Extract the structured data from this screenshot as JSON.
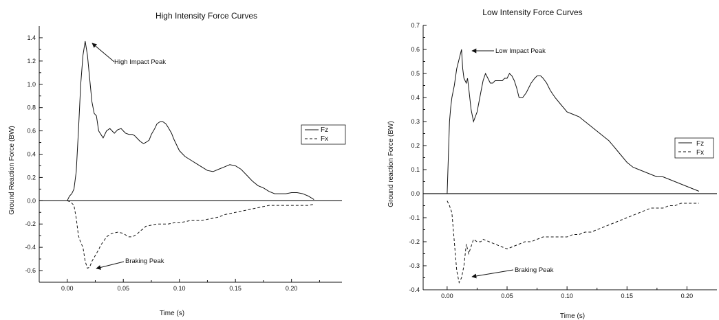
{
  "chart_data": [
    {
      "type": "line",
      "title": "High Intensity Force Curves",
      "xlabel": "Time (s)",
      "ylabel": "Ground Reaction Force (BW)",
      "xlim": [
        -0.025,
        0.245
      ],
      "ylim": [
        -0.7,
        1.5
      ],
      "xticks": [
        0.0,
        0.05,
        0.1,
        0.15,
        0.2
      ],
      "xtick_labels": [
        "0.00",
        "0.05",
        "0.10",
        "0.15",
        "0.20"
      ],
      "yticks": [
        -0.6,
        -0.4,
        -0.2,
        0.0,
        0.2,
        0.4,
        0.6,
        0.8,
        1.0,
        1.2,
        1.4
      ],
      "ytick_labels": [
        "-0.6",
        "-0.4",
        "-0.2",
        "0.0",
        "0.2",
        "0.4",
        "0.6",
        "0.8",
        "1.0",
        "1.2",
        "1.4"
      ],
      "legend": {
        "position": "right",
        "entries": [
          "Fz",
          "Fx"
        ]
      },
      "annotations": [
        {
          "text": "High Impact Peak",
          "x": 0.018,
          "y": 1.37
        },
        {
          "text": "Braking Peak",
          "x": 0.018,
          "y": -0.58
        }
      ],
      "series": [
        {
          "name": "Fz",
          "style": "solid",
          "x": [
            0.0,
            0.002,
            0.004,
            0.006,
            0.008,
            0.01,
            0.012,
            0.014,
            0.016,
            0.018,
            0.02,
            0.022,
            0.024,
            0.026,
            0.028,
            0.03,
            0.032,
            0.035,
            0.038,
            0.04,
            0.042,
            0.045,
            0.048,
            0.05,
            0.052,
            0.055,
            0.058,
            0.06,
            0.063,
            0.065,
            0.068,
            0.07,
            0.073,
            0.075,
            0.078,
            0.08,
            0.083,
            0.085,
            0.088,
            0.09,
            0.093,
            0.095,
            0.098,
            0.1,
            0.103,
            0.105,
            0.11,
            0.115,
            0.12,
            0.125,
            0.13,
            0.135,
            0.14,
            0.145,
            0.15,
            0.155,
            0.16,
            0.165,
            0.17,
            0.175,
            0.18,
            0.185,
            0.19,
            0.195,
            0.2,
            0.205,
            0.21,
            0.215,
            0.22
          ],
          "y": [
            0.0,
            0.04,
            0.06,
            0.1,
            0.25,
            0.6,
            1.0,
            1.25,
            1.37,
            1.25,
            1.05,
            0.85,
            0.75,
            0.73,
            0.6,
            0.57,
            0.54,
            0.6,
            0.62,
            0.6,
            0.58,
            0.61,
            0.62,
            0.6,
            0.58,
            0.57,
            0.57,
            0.56,
            0.53,
            0.51,
            0.49,
            0.5,
            0.52,
            0.57,
            0.62,
            0.66,
            0.68,
            0.68,
            0.66,
            0.63,
            0.58,
            0.53,
            0.47,
            0.43,
            0.4,
            0.38,
            0.35,
            0.32,
            0.29,
            0.26,
            0.25,
            0.27,
            0.29,
            0.31,
            0.3,
            0.27,
            0.22,
            0.17,
            0.13,
            0.11,
            0.08,
            0.06,
            0.06,
            0.06,
            0.07,
            0.07,
            0.06,
            0.04,
            0.01
          ]
        },
        {
          "name": "Fx",
          "style": "dashed",
          "x": [
            0.0,
            0.003,
            0.006,
            0.008,
            0.01,
            0.012,
            0.014,
            0.016,
            0.018,
            0.02,
            0.022,
            0.025,
            0.028,
            0.03,
            0.033,
            0.035,
            0.038,
            0.04,
            0.045,
            0.05,
            0.053,
            0.055,
            0.058,
            0.06,
            0.063,
            0.065,
            0.068,
            0.07,
            0.075,
            0.08,
            0.085,
            0.09,
            0.095,
            0.1,
            0.105,
            0.11,
            0.115,
            0.12,
            0.125,
            0.13,
            0.135,
            0.14,
            0.145,
            0.15,
            0.155,
            0.16,
            0.165,
            0.17,
            0.175,
            0.18,
            0.185,
            0.19,
            0.195,
            0.2,
            0.205,
            0.21,
            0.215,
            0.22
          ],
          "y": [
            0.0,
            -0.01,
            -0.04,
            -0.15,
            -0.3,
            -0.36,
            -0.4,
            -0.52,
            -0.58,
            -0.57,
            -0.52,
            -0.47,
            -0.42,
            -0.38,
            -0.34,
            -0.31,
            -0.29,
            -0.28,
            -0.27,
            -0.28,
            -0.3,
            -0.31,
            -0.31,
            -0.3,
            -0.28,
            -0.26,
            -0.24,
            -0.22,
            -0.21,
            -0.2,
            -0.2,
            -0.2,
            -0.19,
            -0.19,
            -0.18,
            -0.17,
            -0.17,
            -0.17,
            -0.16,
            -0.15,
            -0.14,
            -0.12,
            -0.11,
            -0.1,
            -0.09,
            -0.08,
            -0.07,
            -0.06,
            -0.05,
            -0.04,
            -0.04,
            -0.04,
            -0.04,
            -0.04,
            -0.04,
            -0.04,
            -0.04,
            -0.03
          ]
        }
      ]
    },
    {
      "type": "line",
      "title": "Low Intensity Force Curves",
      "xlabel": "Time (s)",
      "ylabel": "Ground reaction Force (BW)",
      "xlim": [
        -0.02,
        0.225
      ],
      "ylim": [
        -0.4,
        0.7
      ],
      "xticks": [
        0.0,
        0.05,
        0.1,
        0.15,
        0.2
      ],
      "xtick_labels": [
        "0.00",
        "0.05",
        "0.10",
        "0.15",
        "0.20"
      ],
      "yticks": [
        -0.4,
        -0.3,
        -0.2,
        -0.1,
        0.0,
        0.1,
        0.2,
        0.3,
        0.4,
        0.5,
        0.6,
        0.7
      ],
      "ytick_labels": [
        "-0.4",
        "-0.3",
        "-0.2",
        "-0.1",
        "0.0",
        "0.1",
        "0.2",
        "0.3",
        "0.4",
        "0.5",
        "0.6",
        "0.7"
      ],
      "legend": {
        "position": "right",
        "entries": [
          "Fz",
          "Fx"
        ]
      },
      "annotations": [
        {
          "text": "Low Impact Peak",
          "x": 0.012,
          "y": 0.6
        },
        {
          "text": "Braking Peak",
          "x": 0.01,
          "y": -0.37
        }
      ],
      "series": [
        {
          "name": "Fz",
          "style": "solid",
          "x": [
            0.0,
            0.001,
            0.002,
            0.003,
            0.004,
            0.006,
            0.008,
            0.01,
            0.012,
            0.013,
            0.014,
            0.015,
            0.016,
            0.017,
            0.018,
            0.02,
            0.022,
            0.025,
            0.028,
            0.03,
            0.032,
            0.034,
            0.036,
            0.038,
            0.04,
            0.042,
            0.044,
            0.046,
            0.048,
            0.05,
            0.052,
            0.054,
            0.056,
            0.058,
            0.06,
            0.063,
            0.066,
            0.07,
            0.073,
            0.075,
            0.078,
            0.08,
            0.083,
            0.086,
            0.09,
            0.095,
            0.1,
            0.105,
            0.11,
            0.115,
            0.12,
            0.125,
            0.13,
            0.135,
            0.14,
            0.145,
            0.15,
            0.155,
            0.16,
            0.165,
            0.17,
            0.175,
            0.18,
            0.185,
            0.19,
            0.195,
            0.2,
            0.205,
            0.21
          ],
          "y": [
            0.0,
            0.15,
            0.3,
            0.36,
            0.4,
            0.45,
            0.52,
            0.56,
            0.6,
            0.52,
            0.48,
            0.47,
            0.46,
            0.48,
            0.44,
            0.35,
            0.3,
            0.34,
            0.42,
            0.47,
            0.5,
            0.48,
            0.46,
            0.46,
            0.47,
            0.47,
            0.47,
            0.47,
            0.48,
            0.48,
            0.5,
            0.49,
            0.47,
            0.44,
            0.4,
            0.4,
            0.42,
            0.46,
            0.48,
            0.49,
            0.49,
            0.48,
            0.46,
            0.43,
            0.4,
            0.37,
            0.34,
            0.33,
            0.32,
            0.3,
            0.28,
            0.26,
            0.24,
            0.22,
            0.19,
            0.16,
            0.13,
            0.11,
            0.1,
            0.09,
            0.08,
            0.07,
            0.07,
            0.06,
            0.05,
            0.04,
            0.03,
            0.02,
            0.01
          ]
        },
        {
          "name": "Fx",
          "style": "dashed",
          "x": [
            0.0,
            0.002,
            0.004,
            0.006,
            0.008,
            0.01,
            0.012,
            0.014,
            0.016,
            0.018,
            0.02,
            0.022,
            0.025,
            0.028,
            0.03,
            0.035,
            0.04,
            0.045,
            0.05,
            0.055,
            0.06,
            0.065,
            0.07,
            0.075,
            0.08,
            0.085,
            0.09,
            0.095,
            0.1,
            0.105,
            0.11,
            0.115,
            0.12,
            0.125,
            0.13,
            0.135,
            0.14,
            0.145,
            0.15,
            0.155,
            0.16,
            0.165,
            0.17,
            0.175,
            0.18,
            0.185,
            0.19,
            0.195,
            0.2,
            0.205,
            0.21
          ],
          "y": [
            -0.03,
            -0.05,
            -0.08,
            -0.2,
            -0.32,
            -0.37,
            -0.35,
            -0.3,
            -0.21,
            -0.25,
            -0.22,
            -0.19,
            -0.2,
            -0.2,
            -0.19,
            -0.2,
            -0.21,
            -0.22,
            -0.23,
            -0.22,
            -0.21,
            -0.2,
            -0.2,
            -0.19,
            -0.18,
            -0.18,
            -0.18,
            -0.18,
            -0.18,
            -0.17,
            -0.17,
            -0.16,
            -0.16,
            -0.15,
            -0.14,
            -0.13,
            -0.12,
            -0.11,
            -0.1,
            -0.09,
            -0.08,
            -0.07,
            -0.06,
            -0.06,
            -0.06,
            -0.05,
            -0.05,
            -0.04,
            -0.04,
            -0.04,
            -0.04
          ]
        }
      ]
    }
  ]
}
